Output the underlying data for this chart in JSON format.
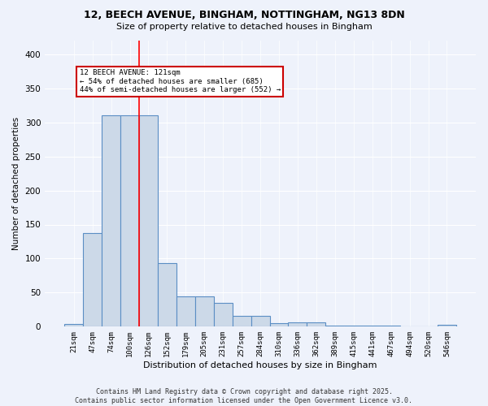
{
  "title": "12, BEECH AVENUE, BINGHAM, NOTTINGHAM, NG13 8DN",
  "subtitle": "Size of property relative to detached houses in Bingham",
  "xlabel": "Distribution of detached houses by size in Bingham",
  "ylabel": "Number of detached properties",
  "categories": [
    "21sqm",
    "47sqm",
    "74sqm",
    "100sqm",
    "126sqm",
    "152sqm",
    "179sqm",
    "205sqm",
    "231sqm",
    "257sqm",
    "284sqm",
    "310sqm",
    "336sqm",
    "362sqm",
    "389sqm",
    "415sqm",
    "441sqm",
    "467sqm",
    "494sqm",
    "520sqm",
    "546sqm"
  ],
  "values": [
    4,
    138,
    310,
    310,
    310,
    93,
    45,
    45,
    35,
    16,
    16,
    5,
    6,
    6,
    2,
    2,
    2,
    2,
    0,
    0,
    3
  ],
  "bar_color": "#ccd9e8",
  "bar_edge_color": "#5b8ec4",
  "background_color": "#eef2fb",
  "grid_color": "#ffffff",
  "red_line_x": 3.5,
  "annotation_text_line1": "12 BEECH AVENUE: 121sqm",
  "annotation_text_line2": "← 54% of detached houses are smaller (685)",
  "annotation_text_line3": "44% of semi-detached houses are larger (552) →",
  "annotation_box_edge": "#cc0000",
  "footer_line1": "Contains HM Land Registry data © Crown copyright and database right 2025.",
  "footer_line2": "Contains public sector information licensed under the Open Government Licence v3.0.",
  "ylim": [
    0,
    420
  ],
  "yticks": [
    0,
    50,
    100,
    150,
    200,
    250,
    300,
    350,
    400
  ]
}
